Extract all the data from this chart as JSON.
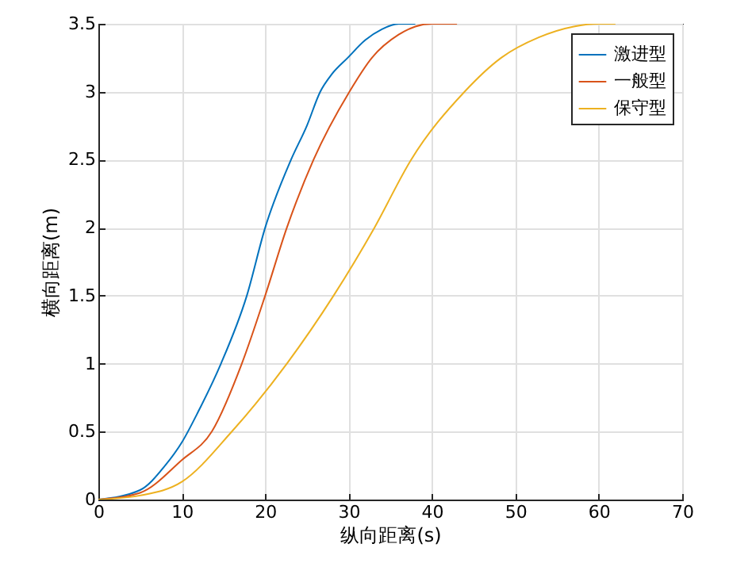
{
  "chart_data": {
    "type": "line",
    "xlabel": "纵向距离(s)",
    "ylabel": "横向距离(m)",
    "xlim": [
      0,
      70
    ],
    "ylim": [
      0,
      3.5
    ],
    "xticks": [
      0,
      10,
      20,
      30,
      40,
      50,
      60,
      70
    ],
    "yticks": [
      0,
      0.5,
      1,
      1.5,
      2,
      2.5,
      3,
      3.5
    ],
    "grid": true,
    "legend": "top right",
    "series": [
      {
        "name": "激进型",
        "color": "#0072bd",
        "x": [
          0,
          5,
          8,
          10,
          12,
          14.7,
          17.8,
          20,
          23.1,
          25,
          26.6,
          28,
          29.9,
          32,
          34,
          36,
          38
        ],
        "values": [
          0,
          0.07,
          0.25,
          0.42,
          0.65,
          1,
          1.5,
          2,
          2.5,
          2.75,
          3,
          3.13,
          3.25,
          3.38,
          3.46,
          3.5,
          3.5
        ]
      },
      {
        "name": "一般型",
        "color": "#d95319",
        "x": [
          0,
          5,
          10,
          13.6,
          17.2,
          20,
          22.6,
          25.8,
          30.1,
          32.8,
          36,
          38,
          40,
          43
        ],
        "values": [
          0,
          0.05,
          0.29,
          0.5,
          1,
          1.5,
          2,
          2.5,
          3,
          3.25,
          3.42,
          3.48,
          3.5,
          3.5
        ]
      },
      {
        "name": "保守型",
        "color": "#edb120",
        "x": [
          0,
          5,
          10,
          16,
          22.6,
          28.2,
          33.1,
          37.5,
          43.9,
          48.3,
          52.8,
          57,
          60,
          62
        ],
        "values": [
          0,
          0.03,
          0.13,
          0.5,
          1,
          1.5,
          2,
          2.5,
          3,
          3.25,
          3.4,
          3.48,
          3.5,
          3.5
        ]
      }
    ]
  }
}
